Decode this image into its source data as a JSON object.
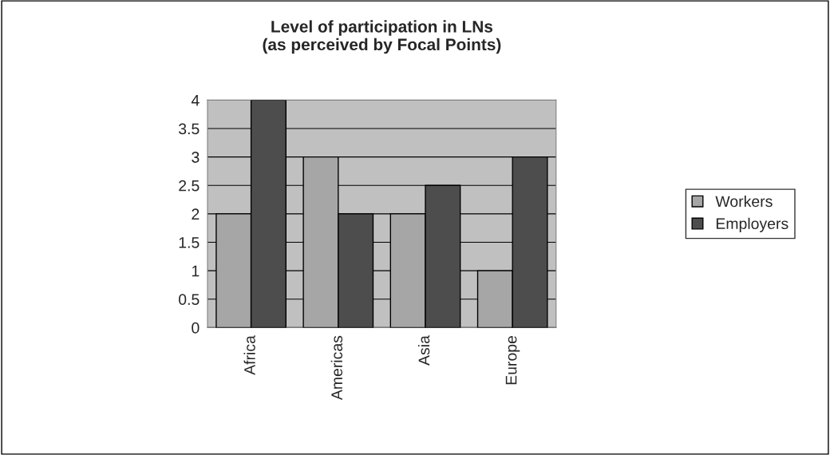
{
  "chart_data": {
    "type": "bar",
    "title": "Level of participation in LNs\n(as perceived by Focal Points)",
    "categories": [
      "Africa",
      "Americas",
      "Asia",
      "Europe"
    ],
    "series": [
      {
        "name": "Workers",
        "color": "#a6a6a6",
        "values": [
          2,
          3,
          2,
          1
        ]
      },
      {
        "name": "Employers",
        "color": "#4d4d4d",
        "values": [
          4,
          2,
          2.5,
          3
        ]
      }
    ],
    "ylim": [
      0,
      4
    ],
    "yticks": [
      0,
      0.5,
      1,
      1.5,
      2,
      2.5,
      3,
      3.5,
      4
    ],
    "grid": "y",
    "legend": "right"
  }
}
